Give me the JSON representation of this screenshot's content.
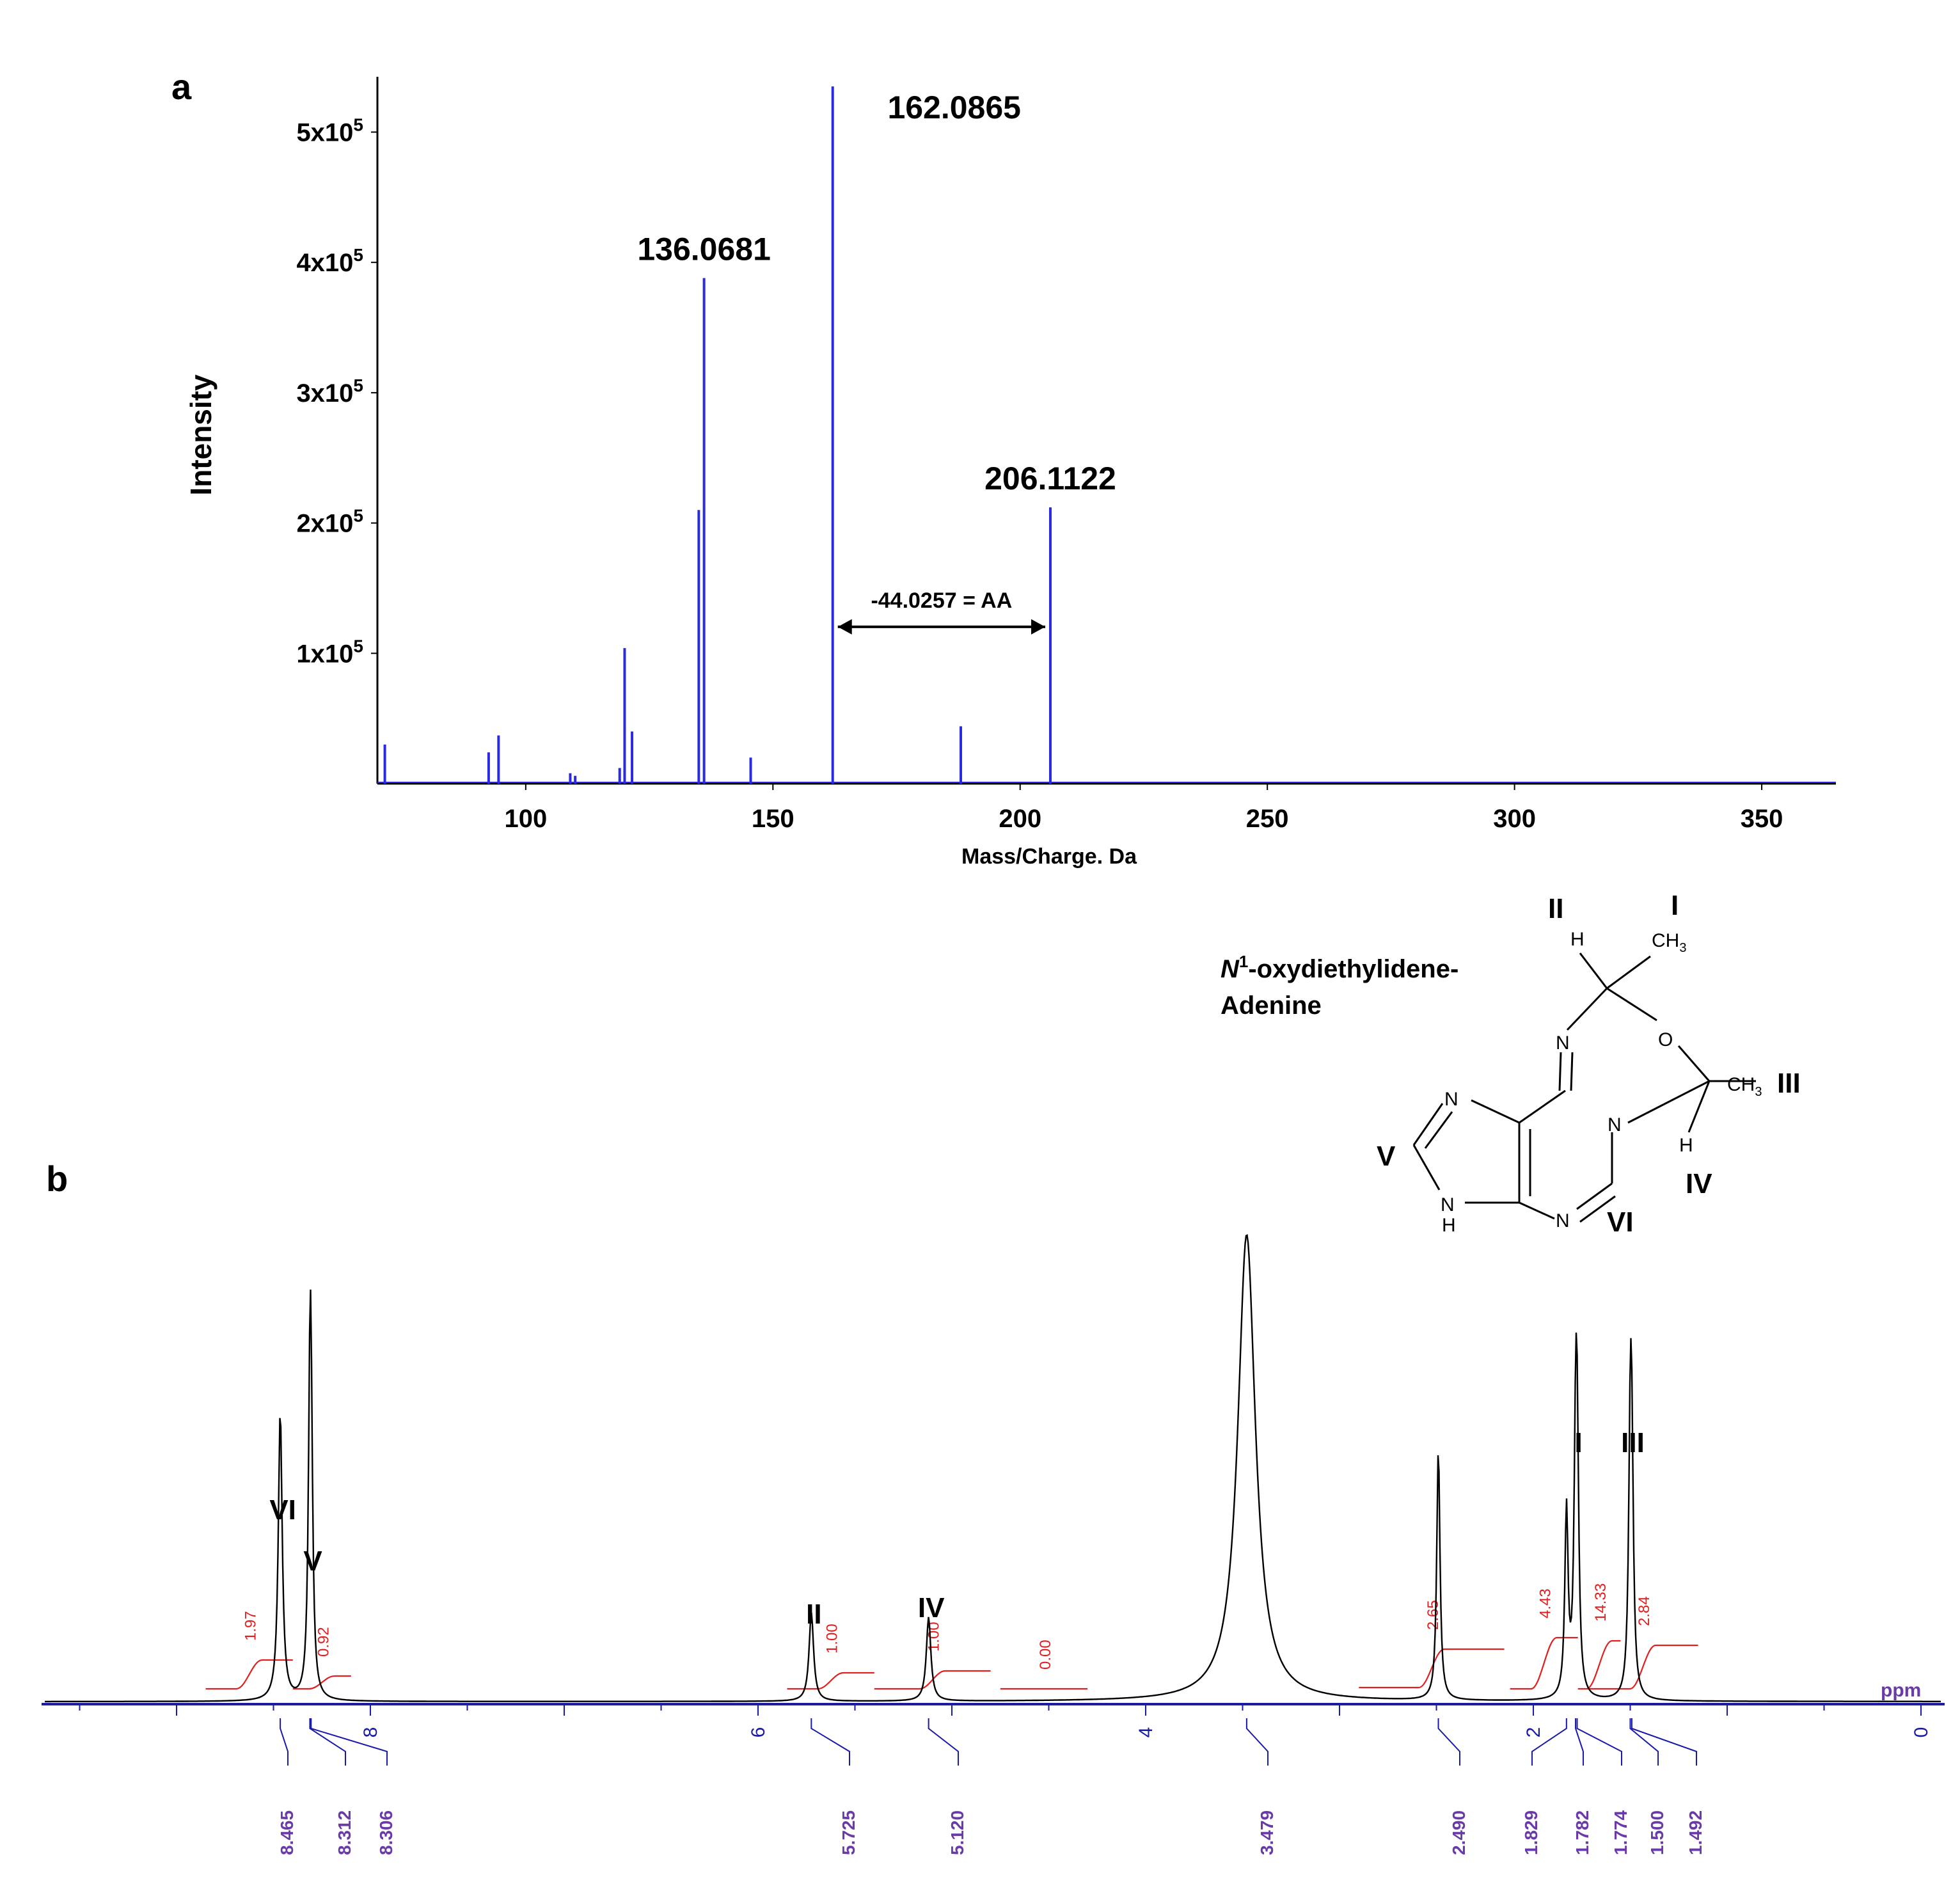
{
  "chart_data": [
    {
      "panel": "a",
      "type": "bar",
      "xlabel": "Mass/Charge. Da",
      "ylabel": "Intensity",
      "xlim": [
        70,
        365
      ],
      "ylim": [
        0,
        540000
      ],
      "xticks": [
        100,
        150,
        200,
        250,
        300,
        350
      ],
      "xtick_labels": [
        "100",
        "150",
        "200",
        "250",
        "300",
        "350"
      ],
      "yticks": [
        100000,
        200000,
        300000,
        400000,
        500000
      ],
      "ytick_labels": [
        {
          "mant": "1x10",
          "exp": "5"
        },
        {
          "mant": "2x10",
          "exp": "5"
        },
        {
          "mant": "3x10",
          "exp": "5"
        },
        {
          "mant": "4x10",
          "exp": "5"
        },
        {
          "mant": "5x10",
          "exp": "5"
        }
      ],
      "grid": false,
      "line_color": "#2a2ae0",
      "peaks": [
        {
          "x": 71.5,
          "y": 30000
        },
        {
          "x": 92.5,
          "y": 24000
        },
        {
          "x": 94.5,
          "y": 37000
        },
        {
          "x": 109.0,
          "y": 8000
        },
        {
          "x": 110.0,
          "y": 6000
        },
        {
          "x": 119.0,
          "y": 12000
        },
        {
          "x": 120.0,
          "y": 104000
        },
        {
          "x": 121.5,
          "y": 40000
        },
        {
          "x": 135.0,
          "y": 210000
        },
        {
          "x": 136.0681,
          "y": 388000,
          "label": "136.0681"
        },
        {
          "x": 145.5,
          "y": 20000
        },
        {
          "x": 162.0865,
          "y": 535000,
          "label": "162.0865"
        },
        {
          "x": 188.0,
          "y": 44000
        },
        {
          "x": 206.1122,
          "y": 212000,
          "label": "206.1122"
        }
      ],
      "annotation": {
        "text": "-44.0257 = AA",
        "from_x": 162.0865,
        "to_x": 206.1122,
        "y": 140000
      }
    },
    {
      "panel": "b",
      "type": "line",
      "xlabel": "ppm",
      "xlim": [
        10.0,
        0.0
      ],
      "xticks": [
        8,
        6,
        4,
        2,
        0
      ],
      "xtick_labels": [
        "8",
        "6",
        "4",
        "2",
        "0"
      ],
      "line_color": "#000000",
      "axis_color": "#1a1aa8",
      "signals": [
        {
          "ppm": 8.465,
          "height": 0.62,
          "width": 0.012
        },
        {
          "ppm": 8.312,
          "height": 0.51,
          "width": 0.01
        },
        {
          "ppm": 8.306,
          "height": 0.45,
          "width": 0.01
        },
        {
          "ppm": 5.725,
          "height": 0.19,
          "width": 0.014
        },
        {
          "ppm": 5.12,
          "height": 0.18,
          "width": 0.014
        },
        {
          "ppm": 3.479,
          "height": 1.0,
          "width": 0.055
        },
        {
          "ppm": 2.49,
          "height": 0.54,
          "width": 0.01
        },
        {
          "ppm": 1.829,
          "height": 0.4,
          "width": 0.01
        },
        {
          "ppm": 1.782,
          "height": 0.44,
          "width": 0.01
        },
        {
          "ppm": 1.774,
          "height": 0.46,
          "width": 0.01
        },
        {
          "ppm": 1.5,
          "height": 0.47,
          "width": 0.01
        },
        {
          "ppm": 1.492,
          "height": 0.43,
          "width": 0.01
        }
      ],
      "peak_picks": [
        "8.465",
        "8.312",
        "8.306",
        "5.725",
        "5.120",
        "3.479",
        "2.490",
        "1.829",
        "1.782",
        "1.774",
        "1.500",
        "1.492"
      ],
      "assignments": [
        {
          "label": "VI",
          "ppm": 8.465
        },
        {
          "label": "V",
          "ppm": 8.31
        },
        {
          "label": "II",
          "ppm": 5.725
        },
        {
          "label": "IV",
          "ppm": 5.12
        },
        {
          "label": "I",
          "ppm": 1.78
        },
        {
          "label": "III",
          "ppm": 1.5
        }
      ],
      "integrals": [
        {
          "value": "1.97",
          "from": 8.85,
          "to": 8.4
        },
        {
          "value": "0.92",
          "from": 8.4,
          "to": 8.1
        },
        {
          "value": "1.00",
          "from": 5.85,
          "to": 5.4
        },
        {
          "value": "1.00",
          "from": 5.4,
          "to": 4.8
        },
        {
          "value": "0.00",
          "from": 4.75,
          "to": 4.3
        },
        {
          "value": "2.65",
          "from": 2.9,
          "to": 2.15
        },
        {
          "value": "4.43",
          "from": 2.12,
          "to": 1.77
        },
        {
          "value": "14.33",
          "from": 1.77,
          "to": 1.55
        },
        {
          "value": "2.84",
          "from": 1.72,
          "to": 1.15
        }
      ],
      "integral_color": "#e02020",
      "pick_color": "#6a3aa8"
    }
  ],
  "panel_labels": {
    "a": "a",
    "b": "b"
  },
  "molecule": {
    "title_italic": "N",
    "title_sup": "1",
    "title_rest": "-oxydiethylidene-",
    "title_line2": "Adenine",
    "atoms": {
      "N": "N",
      "O": "O",
      "H": "H",
      "CH": "CH",
      "sub3": "3",
      "NH": "N",
      "NH_H": "H"
    },
    "labels": [
      "I",
      "II",
      "III",
      "IV",
      "V",
      "VI"
    ]
  }
}
